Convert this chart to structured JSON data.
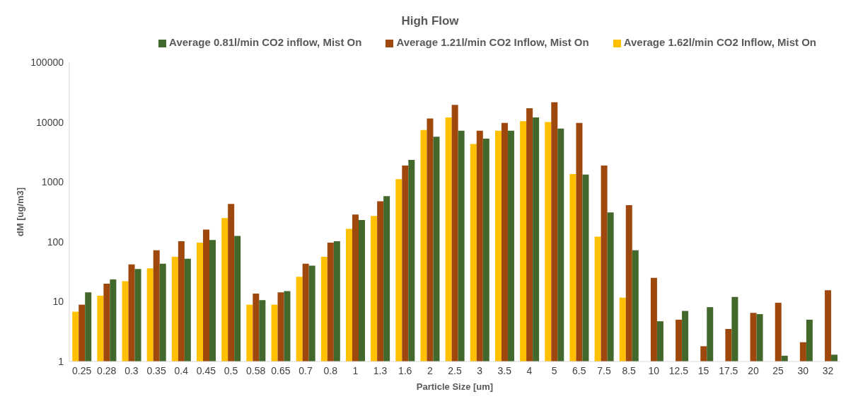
{
  "chart_data": {
    "type": "bar",
    "title": "High Flow",
    "xlabel": "Particle Size [um]",
    "ylabel": "dM [ug/m3]",
    "categories": [
      "0.25",
      "0.28",
      "0.3",
      "0.35",
      "0.4",
      "0.45",
      "0.5",
      "0.58",
      "0.65",
      "0.7",
      "0.8",
      "1",
      "1.3",
      "1.6",
      "2",
      "2.5",
      "3",
      "3.5",
      "4",
      "5",
      "6.5",
      "7.5",
      "8.5",
      "10",
      "12.5",
      "15",
      "17.5",
      "20",
      "25",
      "30",
      "32"
    ],
    "series": [
      {
        "name": "Average 1.62l/min CO2 Inflow, Mist On",
        "color": "#ffc000",
        "values": [
          6.8,
          12.6,
          22,
          36,
          56,
          97,
          250,
          8.9,
          8.9,
          26,
          56,
          165,
          270,
          1110,
          7400,
          12000,
          4300,
          7200,
          10400,
          10000,
          1360,
          122,
          11.7,
          1,
          null,
          null,
          null,
          null,
          null,
          null,
          1
        ]
      },
      {
        "name": "Average 1.21l/min CO2 Inflow, Mist On",
        "color": "#9e480e",
        "values": [
          8.9,
          20,
          42,
          72,
          102,
          160,
          430,
          13.6,
          14.3,
          43,
          97,
          285,
          475,
          1880,
          11500,
          19400,
          7200,
          9700,
          17000,
          21500,
          9700,
          1880,
          410,
          25,
          5,
          1.8,
          3.5,
          6.5,
          9.6,
          2.1,
          15.5
        ]
      },
      {
        "name": "Average 0.81l/min CO2 inflow, Mist On",
        "color": "#43682b",
        "values": [
          14.3,
          23.5,
          35,
          43,
          52,
          107,
          125,
          10.6,
          15,
          40,
          102,
          232,
          580,
          2330,
          5700,
          7200,
          5300,
          7200,
          12000,
          7800,
          1330,
          310,
          72,
          4.7,
          7,
          8.1,
          12,
          6.2,
          1.25,
          5,
          1.3
        ]
      }
    ],
    "log": true,
    "ylim": [
      1,
      100000
    ],
    "yticks": [
      1,
      10,
      100,
      1000,
      10000,
      100000
    ],
    "grid": false,
    "legend": "top"
  }
}
